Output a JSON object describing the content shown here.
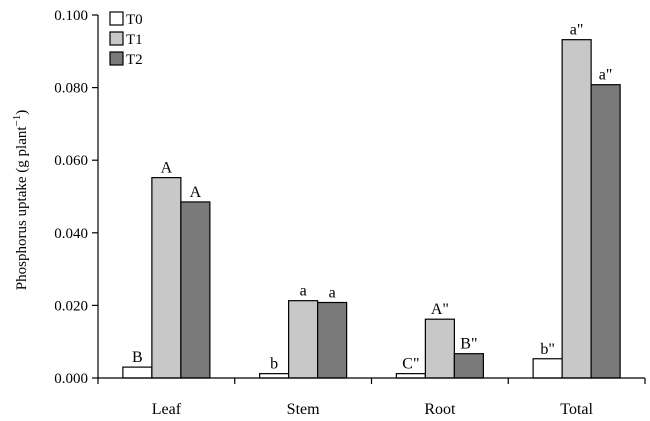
{
  "chart_data": {
    "type": "bar",
    "categories": [
      "Leaf",
      "Stem",
      "Root",
      "Total"
    ],
    "series": [
      {
        "name": "T0",
        "values": [
          0.003,
          0.0012,
          0.0012,
          0.0053
        ],
        "labels": [
          "B",
          "b",
          "C\"",
          "b\""
        ],
        "color": "#ffffff"
      },
      {
        "name": "T1",
        "values": [
          0.0552,
          0.0213,
          0.0162,
          0.0932
        ],
        "labels": [
          "A",
          "a",
          "A\"",
          "a\""
        ],
        "color": "#c8c8c8"
      },
      {
        "name": "T2",
        "values": [
          0.0485,
          0.0208,
          0.0067,
          0.0808
        ],
        "labels": [
          "A",
          "a",
          "B\"",
          "a\""
        ],
        "color": "#7a7a7a"
      }
    ],
    "ylabel": "Phosphorus uptake (g plant",
    "ylabel_superscript": "−1",
    "ylabel_close": ")",
    "ylim": [
      0,
      0.1
    ],
    "yticks": [
      "0.000",
      "0.020",
      "0.040",
      "0.060",
      "0.080",
      "0.100"
    ],
    "ytick_values": [
      0,
      0.02,
      0.04,
      0.06,
      0.08,
      0.1
    ],
    "legend_position": "top-left",
    "grid": false
  }
}
